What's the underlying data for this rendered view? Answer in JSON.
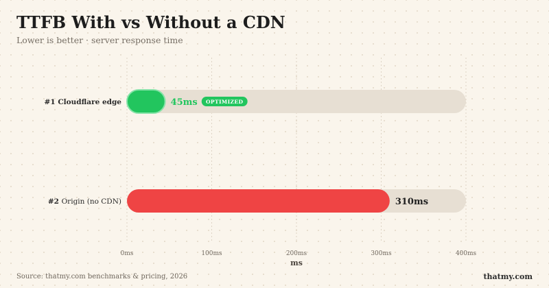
{
  "header": {
    "title": "TTFB With vs Without a CDN",
    "subtitle": "Lower is better · server response time"
  },
  "chart_data": {
    "type": "bar",
    "orientation": "horizontal",
    "categories": [
      "Cloudflare edge",
      "Origin (no CDN)"
    ],
    "ranks": [
      "#1",
      "#2"
    ],
    "values": [
      45,
      310
    ],
    "value_labels": [
      "45ms",
      "310ms"
    ],
    "badges": [
      "OPTIMIZED",
      ""
    ],
    "xlabel": "ms",
    "ylabel": "",
    "xlim": [
      0,
      400
    ],
    "xticks": [
      0,
      100,
      200,
      300,
      400
    ],
    "xtick_labels": [
      "0ms",
      "100ms",
      "200ms",
      "300ms",
      "400ms"
    ],
    "grid": true,
    "colors": {
      "best": "#22c55e",
      "worst": "#ef4444",
      "track": "#e7dfd3",
      "badge": "#22c55e"
    }
  },
  "footer": {
    "source": "Source: thatmy.com benchmarks & pricing, 2026",
    "brand": "thatmy.com"
  }
}
